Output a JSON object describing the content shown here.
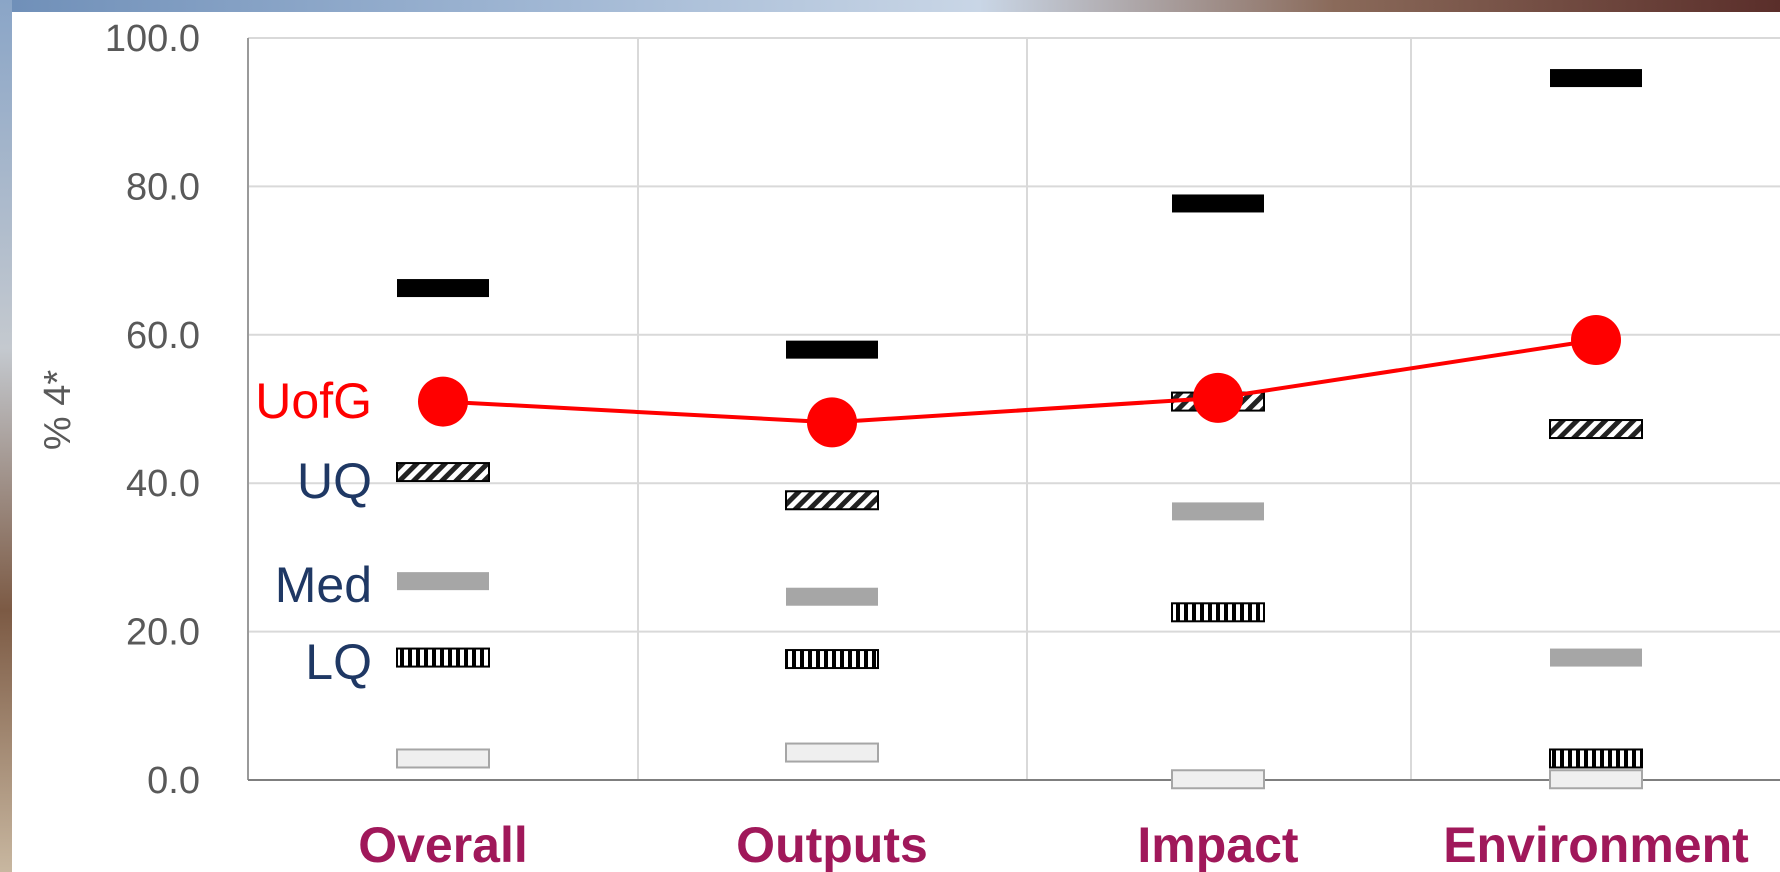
{
  "chart_data": {
    "type": "scatter",
    "title": "",
    "xlabel": "",
    "ylabel": "% 4*",
    "ylim": [
      0,
      100
    ],
    "yticks": [
      "0.0",
      "20.0",
      "40.0",
      "60.0",
      "80.0",
      "100.0"
    ],
    "categories": [
      "Overall",
      "Outputs",
      "Impact",
      "Environment"
    ],
    "series": [
      {
        "name": "UofG",
        "marker": "red-circle",
        "connected": true,
        "values": [
          51.0,
          48.2,
          51.5,
          59.3
        ]
      },
      {
        "name": "",
        "marker": "black-bar",
        "values": [
          66.3,
          58.0,
          77.7,
          94.6
        ]
      },
      {
        "name": "UQ",
        "marker": "hatched-bar",
        "values": [
          41.5,
          37.7,
          51.0,
          47.3
        ]
      },
      {
        "name": "Med",
        "marker": "gray-bar",
        "values": [
          26.8,
          24.7,
          36.2,
          16.5
        ]
      },
      {
        "name": "LQ",
        "marker": "striped-bar",
        "values": [
          16.5,
          16.3,
          22.6,
          2.9
        ]
      },
      {
        "name": "",
        "marker": "light-bar",
        "values": [
          2.9,
          3.7,
          0.1,
          0.1
        ]
      }
    ],
    "grid": true,
    "legend": "inline labels on left",
    "colors": {
      "uofg": "#ff0000",
      "series_label": "#1f3864",
      "category_label": "#a0185a",
      "tick_label": "#595959",
      "black_bar": "#000000",
      "gray_bar": "#a6a6a6",
      "light_bar": "#efefef",
      "grid": "#d9d9d9"
    }
  }
}
